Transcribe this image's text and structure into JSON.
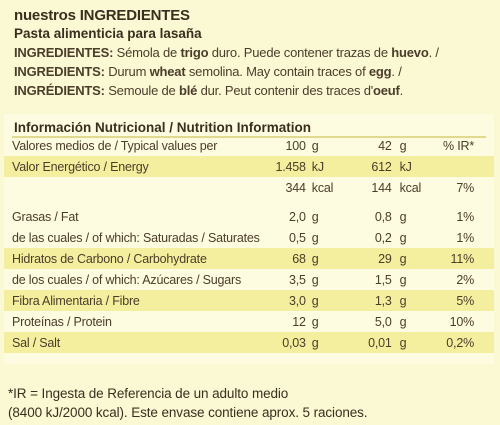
{
  "header": {
    "title_prefix": "nuestros ",
    "title_main": "INGREDIENTES",
    "product": "Pasta alimenticia para lasaña"
  },
  "ingredients": [
    {
      "label": "INGREDIENTES:",
      "pre": " Sémola de ",
      "bold": "trigo",
      "mid": " duro. Puede contener trazas de ",
      "bold2": "huevo",
      "post": ". /"
    },
    {
      "label": "INGREDIENTS:",
      "pre": " Durum ",
      "bold": "wheat",
      "mid": " semolina. May contain traces of ",
      "bold2": "egg",
      "post": ". /"
    },
    {
      "label": "INGRÉDIENTS:",
      "pre": " Semoule de ",
      "bold": "blé",
      "mid": " dur. Peut contenir des traces d'",
      "bold2": "oeuf",
      "post": "."
    }
  ],
  "nutrition": {
    "heading": "Información Nutricional / Nutrition Information",
    "columns": {
      "name": "Valores medios de / Typical values per",
      "v100": "100",
      "u100": "g",
      "v42": "42",
      "u42": "g",
      "ir": "% IR*"
    },
    "rows": [
      {
        "name": "Valor Energético / Energy",
        "v100": "1.458",
        "u100": "kJ",
        "v42": "612",
        "u42": "kJ",
        "ir": ""
      },
      {
        "name": "",
        "v100": "344",
        "u100": "kcal",
        "v42": "144",
        "u42": "kcal",
        "ir": "7%"
      },
      {
        "name": "Grasas / Fat",
        "v100": "2,0",
        "u100": "g",
        "v42": "0,8",
        "u42": "g",
        "ir": "1%"
      },
      {
        "name": "de las cuales / of which: Saturadas / Saturates",
        "v100": "0,5",
        "u100": "g",
        "v42": "0,2",
        "u42": "g",
        "ir": "1%"
      },
      {
        "name": "Hidratos de Carbono / Carbohydrate",
        "v100": "68",
        "u100": "g",
        "v42": "29",
        "u42": "g",
        "ir": "11%"
      },
      {
        "name": "de los cuales / of which: Azúcares / Sugars",
        "v100": "3,5",
        "u100": "g",
        "v42": "1,5",
        "u42": "g",
        "ir": "2%"
      },
      {
        "name": "Fibra Alimentaria / Fibre",
        "v100": "3,0",
        "u100": "g",
        "v42": "1,3",
        "u42": "g",
        "ir": "5%"
      },
      {
        "name": "Proteínas / Protein",
        "v100": "12",
        "u100": "g",
        "v42": "5,0",
        "u42": "g",
        "ir": "10%"
      },
      {
        "name": "Sal / Salt",
        "v100": "0,03",
        "u100": "g",
        "v42": "0,01",
        "u42": "g",
        "ir": "0,2%"
      }
    ]
  },
  "footnote": {
    "line1": "*IR = Ingesta de Referencia de un adulto medio",
    "line2": "(8400 kJ/2000 kcal). Este envase contiene aprox. 5 raciones."
  }
}
